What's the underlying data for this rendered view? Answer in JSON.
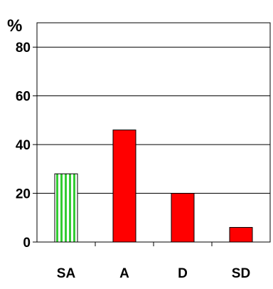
{
  "chart_data": {
    "type": "bar",
    "y_unit_label": "%",
    "categories": [
      "SA",
      "A",
      "D",
      "SD"
    ],
    "values": [
      28,
      46,
      20,
      6
    ],
    "ylim": [
      0,
      90
    ],
    "yticks": [
      0,
      20,
      40,
      60,
      80
    ],
    "grid": true,
    "bar_styles": [
      {
        "fill": "#ffffff",
        "stripe": "#33cc33",
        "pattern": "vertical-stripes"
      },
      {
        "fill": "#ff0000"
      },
      {
        "fill": "#ff0000"
      },
      {
        "fill": "#ff0000"
      }
    ]
  }
}
